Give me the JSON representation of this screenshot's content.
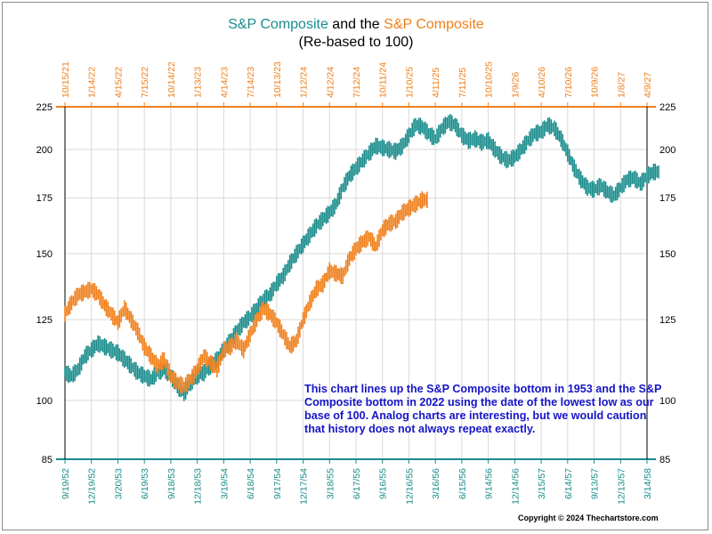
{
  "title": {
    "part1": "S&P Composite",
    "part2": " and the ",
    "part3": "S&P Composite",
    "subtitle": "(Re-based to 100)"
  },
  "annotation": "This chart lines up the S&P Composite bottom in 1953 and the S&P Composite bottom in 2022 using the date of the lowest low as our base of 100.  Analog charts are interesting, but we would caution that history does not always repeat exactly.",
  "copyright": "Copyright © 2024 Thechartstore.com",
  "colors": {
    "teal": "#1a8c8c",
    "orange": "#ef7f1a",
    "grid": "#d9d9d9",
    "text_blue": "#1515c8"
  },
  "chart_data": {
    "type": "line",
    "yscale": "log",
    "ylim": [
      85,
      225
    ],
    "yticks": [
      85,
      100,
      125,
      150,
      175,
      200,
      225
    ],
    "grid": true,
    "legend": "title",
    "x_bottom_labels": [
      "9/19/52",
      "12/19/52",
      "3/20/53",
      "6/19/53",
      "9/18/53",
      "12/18/53",
      "3/19/54",
      "6/18/54",
      "9/17/54",
      "12/17/54",
      "3/18/55",
      "6/17/55",
      "9/16/55",
      "12/16/55",
      "3/16/56",
      "6/15/56",
      "9/14/56",
      "12/14/56",
      "3/15/57",
      "6/14/57",
      "9/13/57",
      "12/13/57",
      "3/14/58"
    ],
    "x_top_labels": [
      "10/15/21",
      "1/14/22",
      "4/15/22",
      "7/15/22",
      "10/14/22",
      "1/13/23",
      "4/14/23",
      "7/14/23",
      "10/13/23",
      "1/12/24",
      "4/12/24",
      "7/12/24",
      "10/11/24",
      "1/10/25",
      "4/11/25",
      "7/11/25",
      "10/10/25",
      "1/9/26",
      "4/10/26",
      "7/10/26",
      "10/9/26",
      "1/8/27",
      "4/9/27"
    ],
    "series": [
      {
        "name": "S&P Composite",
        "axis": "bottom",
        "color": "#1a8c8c",
        "x": [
          0,
          0.25,
          0.5,
          0.75,
          1,
          1.25,
          1.5,
          1.75,
          2,
          2.25,
          2.5,
          2.75,
          3,
          3.25,
          3.5,
          3.75,
          4,
          4.25,
          4.5,
          4.75,
          5,
          5.25,
          5.5,
          5.75,
          6,
          6.25,
          6.5,
          6.75,
          7,
          7.25,
          7.5,
          7.75,
          8,
          8.25,
          8.5,
          8.75,
          9,
          9.25,
          9.5,
          9.75,
          10,
          10.25,
          10.5,
          10.75,
          11,
          11.25,
          11.5,
          11.75,
          12,
          12.25,
          12.5,
          12.75,
          13,
          13.25,
          13.5,
          13.75,
          14,
          14.25,
          14.5,
          14.75,
          15,
          15.25,
          15.5,
          15.75,
          16,
          16.25,
          16.5,
          16.75,
          17,
          17.25,
          17.5,
          17.75,
          18,
          18.25,
          18.5,
          18.75,
          19,
          19.25,
          19.5,
          19.75,
          20,
          20.25,
          20.5,
          20.75,
          21,
          21.25,
          21.5,
          21.75,
          22,
          22.25
        ],
        "values": [
          108,
          107,
          109,
          113,
          115,
          117,
          116,
          115,
          114,
          112,
          110,
          108,
          107,
          106,
          108,
          109,
          107,
          104,
          102,
          105,
          107,
          108,
          110,
          112,
          115,
          118,
          121,
          124,
          126,
          129,
          132,
          134,
          138,
          141,
          146,
          150,
          154,
          158,
          162,
          165,
          168,
          172,
          180,
          186,
          190,
          194,
          198,
          202,
          201,
          200,
          199,
          202,
          208,
          214,
          213,
          209,
          206,
          212,
          216,
          214,
          208,
          205,
          206,
          204,
          205,
          200,
          196,
          194,
          196,
          200,
          205,
          209,
          210,
          214,
          212,
          206,
          198,
          190,
          184,
          180,
          179,
          181,
          178,
          176,
          180,
          184,
          185,
          182,
          186,
          188
        ]
      },
      {
        "name": "S&P Composite",
        "axis": "top",
        "color": "#ef7f1a",
        "x": [
          0,
          0.25,
          0.5,
          0.75,
          1,
          1.25,
          1.5,
          1.75,
          2,
          2.25,
          2.5,
          2.75,
          3,
          3.25,
          3.5,
          3.75,
          4,
          4.25,
          4.5,
          4.75,
          5,
          5.25,
          5.5,
          5.75,
          6,
          6.25,
          6.5,
          6.75,
          7,
          7.25,
          7.5,
          7.75,
          8,
          8.25,
          8.5,
          8.75,
          9,
          9.25,
          9.5,
          9.75,
          10,
          10.25,
          10.5,
          10.75,
          11,
          11.25,
          11.5,
          11.75,
          12,
          12.25,
          12.5,
          12.75,
          13,
          13.25,
          13.5
        ],
        "values": [
          127,
          131,
          134,
          135,
          136,
          134,
          130,
          127,
          124,
          129,
          125,
          121,
          116,
          113,
          110,
          112,
          107,
          105,
          104,
          106,
          109,
          113,
          111,
          109,
          115,
          116,
          118,
          115,
          120,
          125,
          129,
          127,
          124,
          120,
          116,
          118,
          125,
          131,
          136,
          138,
          143,
          142,
          141,
          148,
          152,
          155,
          157,
          153,
          160,
          163,
          164,
          168,
          170,
          172,
          174
        ]
      }
    ]
  }
}
